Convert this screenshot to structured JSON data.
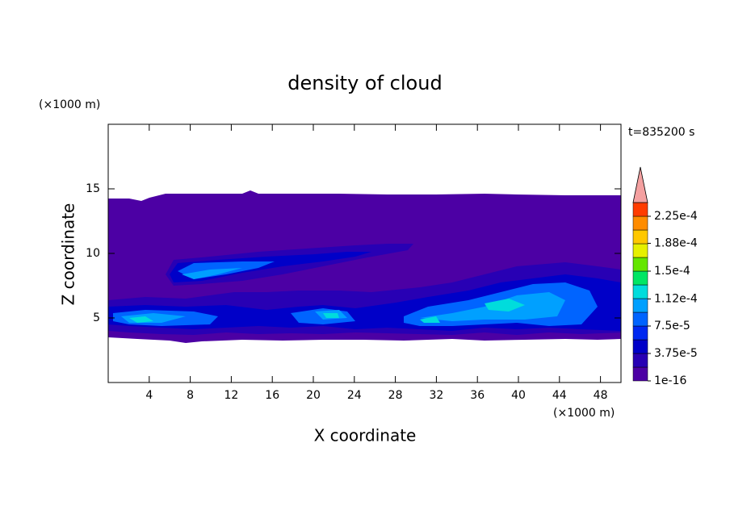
{
  "chart_data": {
    "type": "contour",
    "title": "density of cloud",
    "x_label": "X coordinate",
    "y_label": "Z coordinate",
    "x_unit": "(×1000 m)",
    "y_unit": "(×1000 m)",
    "annotation": "t=835200 s",
    "xlim": [
      0,
      50
    ],
    "ylim": [
      0,
      20
    ],
    "xticks": [
      4,
      8,
      12,
      16,
      20,
      24,
      28,
      32,
      36,
      40,
      44,
      48
    ],
    "yticks": [
      5,
      10,
      15
    ],
    "colorbar": {
      "ticks": [
        1e-16,
        {
          "value": 3.75e-05,
          "label": "3.75e-5"
        },
        {
          "value": 7.5e-05,
          "label": "7.5e-5"
        },
        {
          "value": 0.000112,
          "label": "1.12e-4"
        },
        {
          "value": 0.00015,
          "label": "1.5e-4"
        },
        {
          "value": 0.000188,
          "label": "1.88e-4"
        },
        {
          "value": 0.000225,
          "label": "2.25e-4"
        }
      ],
      "colors": [
        "#4c00a4",
        "#2800b4",
        "#0000c8",
        "#0028f0",
        "#0064ff",
        "#00a0ff",
        "#00dcdc",
        "#00e664",
        "#64e600",
        "#e6f000",
        "#ffc800",
        "#ff8c00",
        "#ff3c00"
      ],
      "extend_color": "#f4a0a0"
    }
  }
}
